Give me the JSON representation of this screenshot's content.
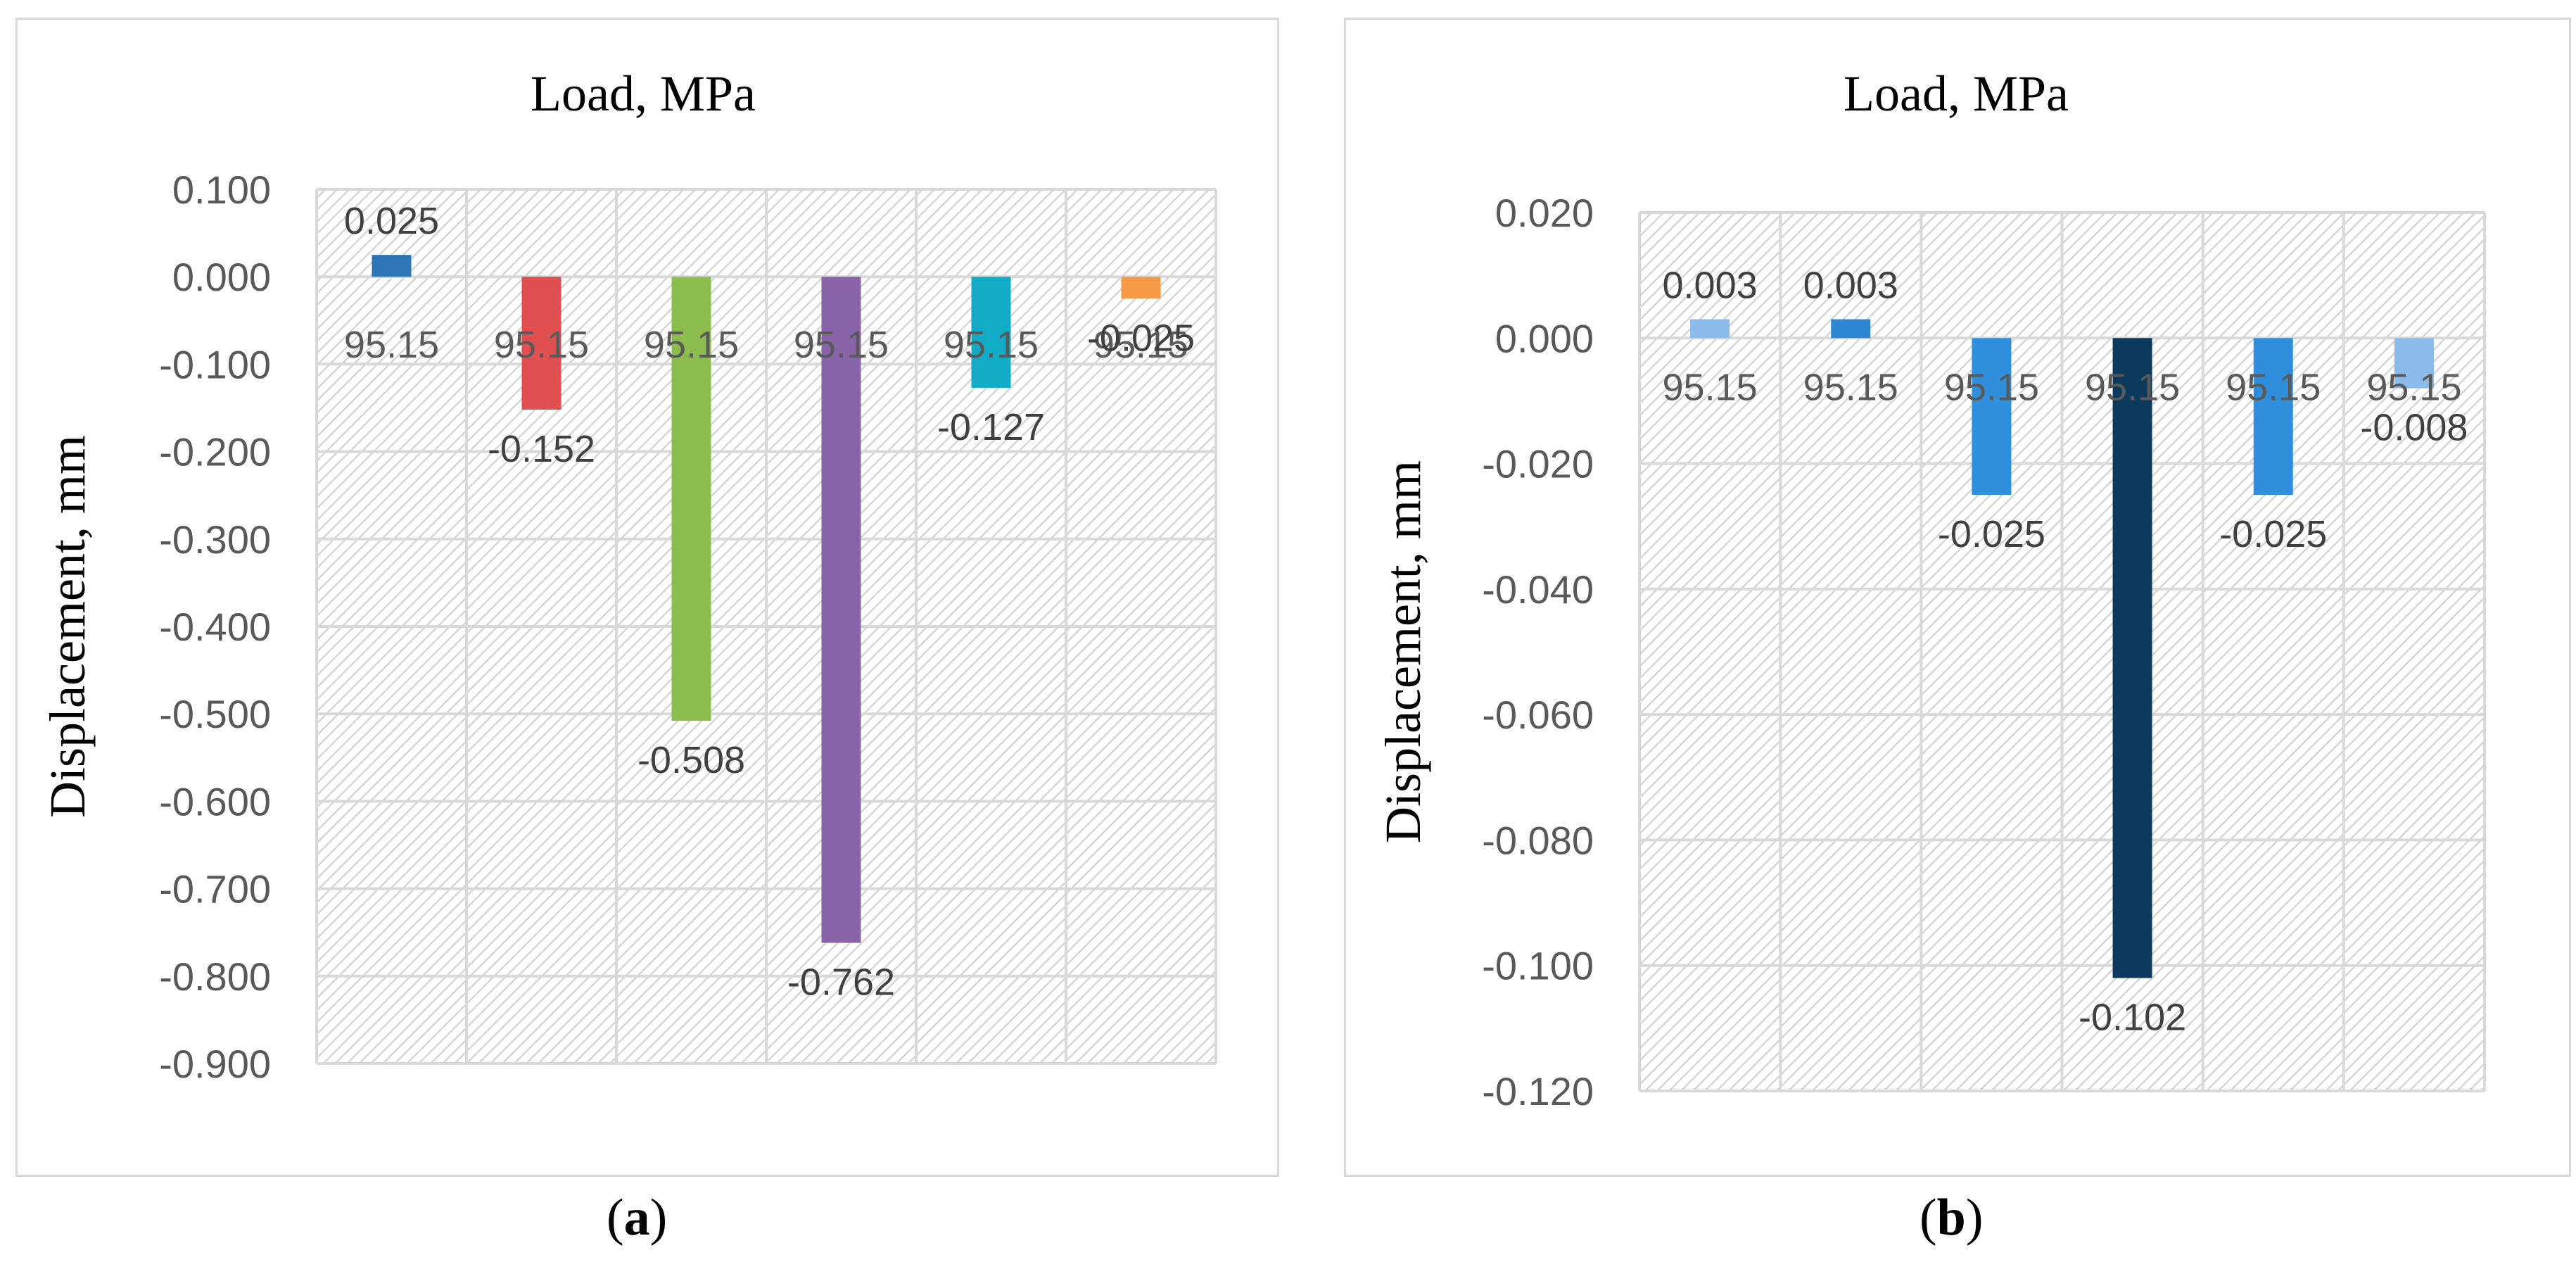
{
  "chart_data": [
    {
      "type": "bar",
      "panel": "a",
      "title": "Load, MPa",
      "xlabel": "",
      "ylabel": "Displacement, mm",
      "ylim": [
        -0.9,
        0.1
      ],
      "yticks": [
        "0.100",
        "0.000",
        "-0.100",
        "-0.200",
        "-0.300",
        "-0.400",
        "-0.500",
        "-0.600",
        "-0.700",
        "-0.800",
        "-0.900"
      ],
      "ytick_values": [
        0.1,
        0.0,
        -0.1,
        -0.2,
        -0.3,
        -0.4,
        -0.5,
        -0.6,
        -0.7,
        -0.8,
        -0.9
      ],
      "categories": [
        "95.15",
        "95.15",
        "95.15",
        "95.15",
        "95.15",
        "95.15"
      ],
      "values": [
        0.025,
        -0.152,
        -0.508,
        -0.762,
        -0.127,
        -0.025
      ],
      "value_labels": [
        "0.025",
        "-0.152",
        "-0.508",
        "-0.762",
        "-0.127",
        "-0.025"
      ],
      "colors": [
        "#2e75b6",
        "#e05050",
        "#8cbd4e",
        "#8a64a8",
        "#12acc6",
        "#f79a46"
      ],
      "grid": true
    },
    {
      "type": "bar",
      "panel": "b",
      "title": "Load, MPa",
      "xlabel": "",
      "ylabel": "Displacement, mm",
      "ylim": [
        -0.12,
        0.02
      ],
      "yticks": [
        "0.020",
        "0.000",
        "-0.020",
        "-0.040",
        "-0.060",
        "-0.080",
        "-0.100",
        "-0.120"
      ],
      "ytick_values": [
        0.02,
        0.0,
        -0.02,
        -0.04,
        -0.06,
        -0.08,
        -0.1,
        -0.12
      ],
      "categories": [
        "95.15",
        "95.15",
        "95.15",
        "95.15",
        "95.15",
        "95.15"
      ],
      "values": [
        0.003,
        0.003,
        -0.025,
        -0.102,
        -0.025,
        -0.008
      ],
      "value_labels": [
        "0.003",
        "0.003",
        "-0.025",
        "-0.102",
        "-0.025",
        "-0.008"
      ],
      "colors": [
        "#8bbbea",
        "#2f86d1",
        "#2f8fdc",
        "#0b3a5c",
        "#2f8fdc",
        "#8bbbea"
      ],
      "grid": true
    }
  ],
  "captions": {
    "a": {
      "open": "(",
      "letter": "a",
      "close": ")"
    },
    "b": {
      "open": "(",
      "letter": "b",
      "close": ")"
    }
  }
}
